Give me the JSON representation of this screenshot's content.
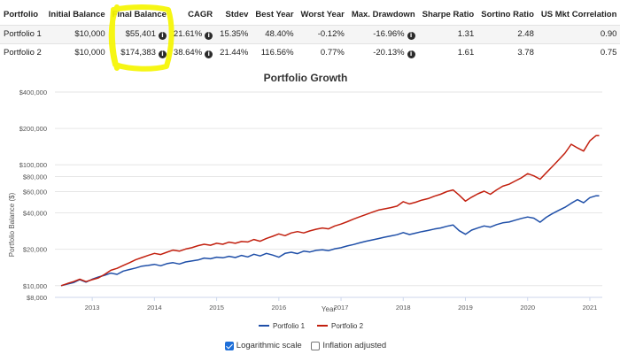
{
  "table": {
    "headers": [
      "Portfolio",
      "Initial Balance",
      "Final Balance",
      "CAGR",
      "Stdev",
      "Best Year",
      "Worst Year",
      "Max. Drawdown",
      "Sharpe Ratio",
      "Sortino Ratio",
      "US Mkt Correlation"
    ],
    "rows": [
      {
        "portfolio": "Portfolio 1",
        "initial": "$10,000",
        "final": "$55,401",
        "cagr": "21.61%",
        "stdev": "15.35%",
        "best": "48.40%",
        "worst": "-0.12%",
        "drawdown": "-16.96%",
        "sharpe": "1.31",
        "sortino": "2.48",
        "corr": "0.90"
      },
      {
        "portfolio": "Portfolio 2",
        "initial": "$10,000",
        "final": "$174,383",
        "cagr": "38.64%",
        "stdev": "21.44%",
        "best": "116.56%",
        "worst": "0.77%",
        "drawdown": "-20.13%",
        "sharpe": "1.61",
        "sortino": "3.78",
        "corr": "0.75"
      }
    ]
  },
  "highlight_color": "#f5f500",
  "info_icon": "info-icon",
  "chart_data": {
    "type": "line",
    "title": "Portfolio Growth",
    "xlabel": "Year",
    "ylabel": "Portfolio Balance ($)",
    "yscale": "log",
    "ylim": [
      8000,
      400000
    ],
    "xlim": [
      2012.4,
      2021.2
    ],
    "y_ticks": [
      {
        "value": 8000,
        "label": "$8,000"
      },
      {
        "value": 10000,
        "label": "$10,000"
      },
      {
        "value": 20000,
        "label": "$20,000"
      },
      {
        "value": 40000,
        "label": "$40,000"
      },
      {
        "value": 60000,
        "label": "$60,000"
      },
      {
        "value": 80000,
        "label": "$80,000"
      },
      {
        "value": 100000,
        "label": "$100,000"
      },
      {
        "value": 200000,
        "label": "$200,000"
      },
      {
        "value": 400000,
        "label": "$400,000"
      }
    ],
    "x_ticks": [
      {
        "value": 2013,
        "label": "2013"
      },
      {
        "value": 2014,
        "label": "2014"
      },
      {
        "value": 2015,
        "label": "2015"
      },
      {
        "value": 2016,
        "label": "2016"
      },
      {
        "value": 2017,
        "label": "2017"
      },
      {
        "value": 2018,
        "label": "2018"
      },
      {
        "value": 2019,
        "label": "2019"
      },
      {
        "value": 2020,
        "label": "2020"
      },
      {
        "value": 2021,
        "label": "2021"
      }
    ],
    "grid": true,
    "legend": "bottom-center",
    "series": [
      {
        "name": "Portfolio 1",
        "color": "#1f4fa8",
        "points": [
          [
            2012.5,
            10000
          ],
          [
            2012.6,
            10300
          ],
          [
            2012.7,
            10600
          ],
          [
            2012.8,
            11200
          ],
          [
            2012.9,
            10700
          ],
          [
            2013.0,
            11300
          ],
          [
            2013.1,
            11800
          ],
          [
            2013.2,
            12200
          ],
          [
            2013.3,
            12700
          ],
          [
            2013.4,
            12400
          ],
          [
            2013.5,
            13200
          ],
          [
            2013.6,
            13600
          ],
          [
            2013.7,
            14000
          ],
          [
            2013.8,
            14500
          ],
          [
            2013.9,
            14700
          ],
          [
            2014.0,
            15000
          ],
          [
            2014.1,
            14600
          ],
          [
            2014.2,
            15200
          ],
          [
            2014.3,
            15500
          ],
          [
            2014.4,
            15100
          ],
          [
            2014.5,
            15700
          ],
          [
            2014.6,
            16000
          ],
          [
            2014.7,
            16300
          ],
          [
            2014.8,
            16900
          ],
          [
            2014.9,
            16700
          ],
          [
            2015.0,
            17200
          ],
          [
            2015.1,
            17000
          ],
          [
            2015.2,
            17500
          ],
          [
            2015.3,
            17100
          ],
          [
            2015.4,
            17800
          ],
          [
            2015.5,
            17300
          ],
          [
            2015.6,
            18200
          ],
          [
            2015.7,
            17600
          ],
          [
            2015.8,
            18500
          ],
          [
            2015.9,
            17900
          ],
          [
            2016.0,
            17200
          ],
          [
            2016.1,
            18500
          ],
          [
            2016.2,
            18900
          ],
          [
            2016.3,
            18400
          ],
          [
            2016.4,
            19300
          ],
          [
            2016.5,
            19000
          ],
          [
            2016.6,
            19600
          ],
          [
            2016.7,
            19800
          ],
          [
            2016.8,
            19500
          ],
          [
            2016.9,
            20200
          ],
          [
            2017.0,
            20600
          ],
          [
            2017.1,
            21300
          ],
          [
            2017.2,
            21900
          ],
          [
            2017.3,
            22600
          ],
          [
            2017.4,
            23300
          ],
          [
            2017.5,
            23900
          ],
          [
            2017.6,
            24500
          ],
          [
            2017.7,
            25200
          ],
          [
            2017.8,
            25800
          ],
          [
            2017.9,
            26400
          ],
          [
            2018.0,
            27500
          ],
          [
            2018.1,
            26500
          ],
          [
            2018.2,
            27200
          ],
          [
            2018.3,
            28000
          ],
          [
            2018.4,
            28600
          ],
          [
            2018.5,
            29400
          ],
          [
            2018.6,
            30000
          ],
          [
            2018.7,
            31000
          ],
          [
            2018.8,
            31800
          ],
          [
            2018.9,
            28500
          ],
          [
            2019.0,
            26600
          ],
          [
            2019.1,
            28800
          ],
          [
            2019.2,
            30000
          ],
          [
            2019.3,
            31200
          ],
          [
            2019.4,
            30500
          ],
          [
            2019.5,
            32000
          ],
          [
            2019.6,
            33100
          ],
          [
            2019.7,
            33600
          ],
          [
            2019.8,
            34800
          ],
          [
            2019.9,
            36000
          ],
          [
            2020.0,
            37000
          ],
          [
            2020.1,
            36200
          ],
          [
            2020.2,
            33500
          ],
          [
            2020.3,
            36800
          ],
          [
            2020.4,
            39500
          ],
          [
            2020.5,
            42000
          ],
          [
            2020.6,
            44500
          ],
          [
            2020.7,
            48000
          ],
          [
            2020.8,
            51500
          ],
          [
            2020.9,
            48500
          ],
          [
            2021.0,
            53500
          ],
          [
            2021.1,
            55401
          ],
          [
            2021.15,
            55401
          ]
        ]
      },
      {
        "name": "Portfolio 2",
        "color": "#c2200f",
        "points": [
          [
            2012.5,
            10000
          ],
          [
            2012.6,
            10400
          ],
          [
            2012.7,
            10800
          ],
          [
            2012.8,
            11300
          ],
          [
            2012.9,
            10800
          ],
          [
            2013.0,
            11200
          ],
          [
            2013.1,
            11600
          ],
          [
            2013.2,
            12400
          ],
          [
            2013.3,
            13400
          ],
          [
            2013.4,
            13900
          ],
          [
            2013.5,
            14700
          ],
          [
            2013.6,
            15500
          ],
          [
            2013.7,
            16400
          ],
          [
            2013.8,
            17100
          ],
          [
            2013.9,
            17800
          ],
          [
            2014.0,
            18500
          ],
          [
            2014.1,
            18100
          ],
          [
            2014.2,
            18900
          ],
          [
            2014.3,
            19700
          ],
          [
            2014.4,
            19300
          ],
          [
            2014.5,
            20100
          ],
          [
            2014.6,
            20600
          ],
          [
            2014.7,
            21400
          ],
          [
            2014.8,
            22000
          ],
          [
            2014.9,
            21600
          ],
          [
            2015.0,
            22400
          ],
          [
            2015.1,
            22000
          ],
          [
            2015.2,
            22900
          ],
          [
            2015.3,
            22400
          ],
          [
            2015.4,
            23200
          ],
          [
            2015.5,
            23000
          ],
          [
            2015.6,
            24100
          ],
          [
            2015.7,
            23300
          ],
          [
            2015.8,
            24600
          ],
          [
            2015.9,
            25600
          ],
          [
            2016.0,
            26800
          ],
          [
            2016.1,
            25900
          ],
          [
            2016.2,
            27300
          ],
          [
            2016.3,
            28000
          ],
          [
            2016.4,
            27300
          ],
          [
            2016.5,
            28400
          ],
          [
            2016.6,
            29300
          ],
          [
            2016.7,
            30000
          ],
          [
            2016.8,
            29500
          ],
          [
            2016.9,
            31200
          ],
          [
            2017.0,
            32300
          ],
          [
            2017.1,
            33800
          ],
          [
            2017.2,
            35500
          ],
          [
            2017.3,
            37200
          ],
          [
            2017.4,
            38800
          ],
          [
            2017.5,
            40500
          ],
          [
            2017.6,
            42200
          ],
          [
            2017.7,
            43200
          ],
          [
            2017.8,
            44200
          ],
          [
            2017.9,
            45500
          ],
          [
            2018.0,
            49500
          ],
          [
            2018.1,
            47500
          ],
          [
            2018.2,
            49000
          ],
          [
            2018.3,
            51000
          ],
          [
            2018.4,
            52500
          ],
          [
            2018.5,
            55000
          ],
          [
            2018.6,
            57000
          ],
          [
            2018.7,
            60000
          ],
          [
            2018.8,
            62000
          ],
          [
            2018.9,
            56000
          ],
          [
            2019.0,
            50000
          ],
          [
            2019.1,
            54000
          ],
          [
            2019.2,
            57500
          ],
          [
            2019.3,
            60500
          ],
          [
            2019.4,
            57000
          ],
          [
            2019.5,
            62000
          ],
          [
            2019.6,
            66500
          ],
          [
            2019.7,
            69000
          ],
          [
            2019.8,
            73500
          ],
          [
            2019.9,
            78000
          ],
          [
            2020.0,
            84500
          ],
          [
            2020.1,
            81000
          ],
          [
            2020.2,
            76000
          ],
          [
            2020.3,
            86000
          ],
          [
            2020.4,
            97000
          ],
          [
            2020.5,
            110000
          ],
          [
            2020.6,
            125000
          ],
          [
            2020.7,
            148000
          ],
          [
            2020.8,
            138000
          ],
          [
            2020.9,
            130000
          ],
          [
            2021.0,
            158000
          ],
          [
            2021.1,
            174383
          ],
          [
            2021.15,
            174383
          ]
        ]
      }
    ]
  },
  "options": [
    {
      "label": "Logarithmic scale",
      "checked": true
    },
    {
      "label": "Inflation adjusted",
      "checked": false
    }
  ]
}
